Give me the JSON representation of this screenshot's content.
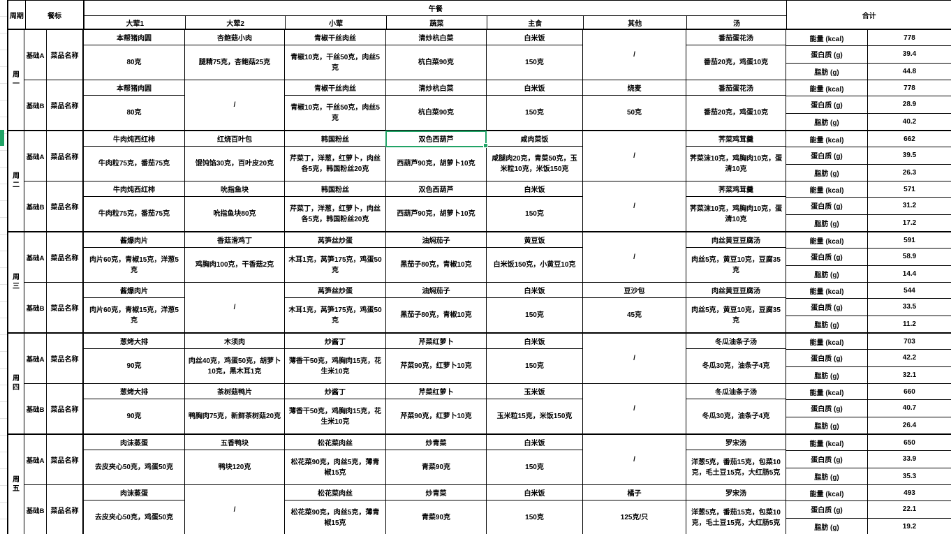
{
  "colors": {
    "selection": "#21a366",
    "grid": "#000000",
    "text": "#000000",
    "background": "#ffffff"
  },
  "header": {
    "period": "周期",
    "meal_standard": "餐标",
    "meal": "午餐",
    "total": "合计",
    "columns": [
      "大荤1",
      "大荤2",
      "小荤",
      "蔬菜",
      "主食",
      "其他",
      "汤"
    ]
  },
  "nutrition_labels": [
    "能量 (kcal)",
    "蛋白质 (g)",
    "脂肪 (g)"
  ],
  "row_label": "菜品名称",
  "selection": {
    "day_index": 1,
    "plan_index": 0,
    "col_index": 3,
    "cell_text": "双色西葫芦"
  },
  "days": [
    {
      "day": "周一",
      "plans": [
        {
          "name": "基础A",
          "dishes": [
            {
              "n": "本帮猪肉圆",
              "q": "80克"
            },
            {
              "n": "杏鲍菇小肉",
              "q": "腿精75克，杏鲍菇25克"
            },
            {
              "n": "青椒干丝肉丝",
              "q": "青椒10克，干丝50克，肉丝5克"
            },
            {
              "n": "清炒杭白菜",
              "q": "杭白菜90克"
            },
            {
              "n": "白米饭",
              "q": "150克"
            },
            {
              "n": "/",
              "m": true
            },
            {
              "n": "番茄蛋花汤",
              "q": "番茄20克，鸡蛋10克"
            }
          ],
          "totals": [
            "778",
            "39.4",
            "44.8"
          ]
        },
        {
          "name": "基础B",
          "dishes": [
            {
              "n": "本帮猪肉圆",
              "q": "80克"
            },
            {
              "n": "/",
              "m": true
            },
            {
              "n": "青椒干丝肉丝",
              "q": "青椒10克，干丝50克，肉丝5克"
            },
            {
              "n": "清炒杭白菜",
              "q": "杭白菜90克"
            },
            {
              "n": "白米饭",
              "q": "150克"
            },
            {
              "n": "烧麦",
              "q": "50克"
            },
            {
              "n": "番茄蛋花汤",
              "q": "番茄20克，鸡蛋10克"
            }
          ],
          "totals": [
            "778",
            "28.9",
            "40.2"
          ]
        }
      ]
    },
    {
      "day": "周二",
      "plans": [
        {
          "name": "基础A",
          "dishes": [
            {
              "n": "牛肉炖西红柿",
              "q": "牛肉粒75克，番茄75克"
            },
            {
              "n": "红烧百叶包",
              "q": "馄饨馅30克，百叶皮20克"
            },
            {
              "n": "韩国粉丝",
              "q": "芹菜丁，洋葱，红萝卜，肉丝各5克，韩国粉丝20克"
            },
            {
              "n": "双色西葫芦",
              "q": "西葫芦90克，胡萝卜10克"
            },
            {
              "n": "咸肉菜饭",
              "q": "咸腿肉20克，青菜50克，玉米粒10克，米饭150克"
            },
            {
              "n": "/",
              "m": true
            },
            {
              "n": "荠菜鸡茸羹",
              "q": "荠菜沫10克，鸡胸肉10克，蛋清10克"
            }
          ],
          "totals": [
            "662",
            "39.5",
            "26.3"
          ]
        },
        {
          "name": "基础B",
          "dishes": [
            {
              "n": "牛肉炖西红柿",
              "q": "牛肉粒75克，番茄75克"
            },
            {
              "n": "吮指鱼块",
              "q": "吮指鱼块80克"
            },
            {
              "n": "韩国粉丝",
              "q": "芹菜丁，洋葱，红萝卜，肉丝各5克，韩国粉丝20克"
            },
            {
              "n": "双色西葫芦",
              "q": "西葫芦90克，胡萝卜10克"
            },
            {
              "n": "白米饭",
              "q": "150克"
            },
            {
              "n": "/",
              "m": true
            },
            {
              "n": "荠菜鸡茸羹",
              "q": "荠菜沫10克，鸡胸肉10克，蛋清10克"
            }
          ],
          "totals": [
            "571",
            "31.2",
            "17.2"
          ]
        }
      ]
    },
    {
      "day": "周三",
      "plans": [
        {
          "name": "基础A",
          "dishes": [
            {
              "n": "酱爆肉片",
              "q": "肉片60克，青椒15克，洋葱5克"
            },
            {
              "n": "香菇滑鸡丁",
              "q": "鸡胸肉100克，干香菇2克"
            },
            {
              "n": "莴笋丝炒蛋",
              "q": "木耳1克，莴笋175克，鸡蛋50克"
            },
            {
              "n": "油焖茄子",
              "q": "黑茄子80克，青椒10克"
            },
            {
              "n": "黄豆饭",
              "q": "白米饭150克，小黄豆10克"
            },
            {
              "n": "/",
              "m": true
            },
            {
              "n": "肉丝黄豆豆腐汤",
              "q": "肉丝5克，黄豆10克，豆腐35克"
            }
          ],
          "totals": [
            "591",
            "58.9",
            "14.4"
          ]
        },
        {
          "name": "基础B",
          "dishes": [
            {
              "n": "酱爆肉片",
              "q": "肉片60克，青椒15克，洋葱5克"
            },
            {
              "n": "/",
              "m": true
            },
            {
              "n": "莴笋丝炒蛋",
              "q": "木耳1克，莴笋175克，鸡蛋50克"
            },
            {
              "n": "油焖茄子",
              "q": "黑茄子80克，青椒10克"
            },
            {
              "n": "白米饭",
              "q": "150克"
            },
            {
              "n": "豆沙包",
              "q": "45克"
            },
            {
              "n": "肉丝黄豆豆腐汤",
              "q": "肉丝5克，黄豆10克，豆腐35克"
            }
          ],
          "totals": [
            "544",
            "33.5",
            "11.2"
          ]
        }
      ]
    },
    {
      "day": "周四",
      "plans": [
        {
          "name": "基础A",
          "dishes": [
            {
              "n": "葱烤大排",
              "q": "90克"
            },
            {
              "n": "木须肉",
              "q": "肉丝40克，鸡蛋50克，胡萝卜10克，黑木耳1克"
            },
            {
              "n": "炒酱丁",
              "q": "薄香干50克，鸡胸肉15克，花生米10克"
            },
            {
              "n": "芹菜红萝卜",
              "q": "芹菜90克，红萝卜10克"
            },
            {
              "n": "白米饭",
              "q": "150克"
            },
            {
              "n": "/",
              "m": true
            },
            {
              "n": "冬瓜油条子汤",
              "q": "冬瓜30克，油条子4克"
            }
          ],
          "totals": [
            "703",
            "42.2",
            "32.1"
          ]
        },
        {
          "name": "基础B",
          "dishes": [
            {
              "n": "葱烤大排",
              "q": "90克"
            },
            {
              "n": "茶树菇鸭片",
              "q": "鸭胸肉75克，新鲜茶树菇20克"
            },
            {
              "n": "炒酱丁",
              "q": "薄香干50克，鸡胸肉15克，花生米10克"
            },
            {
              "n": "芹菜红萝卜",
              "q": "芹菜90克，红萝卜10克"
            },
            {
              "n": "玉米饭",
              "q": "玉米粒15克，米饭150克"
            },
            {
              "n": "/",
              "m": true
            },
            {
              "n": "冬瓜油条子汤",
              "q": "冬瓜30克，油条子4克"
            }
          ],
          "totals": [
            "660",
            "40.7",
            "26.4"
          ]
        }
      ]
    },
    {
      "day": "周五",
      "plans": [
        {
          "name": "基础A",
          "dishes": [
            {
              "n": "肉沫蒸蛋",
              "q": "去皮夹心50克，鸡蛋50克"
            },
            {
              "n": "五香鸭块",
              "q": "鸭块120克"
            },
            {
              "n": "松花菜肉丝",
              "q": "松花菜90克，肉丝5克，薄青椒15克"
            },
            {
              "n": "炒青菜",
              "q": "青菜90克"
            },
            {
              "n": "白米饭",
              "q": "150克"
            },
            {
              "n": "/",
              "m": true
            },
            {
              "n": "罗宋汤",
              "q": "洋葱5克，番茄15克，包菜10克，毛土豆15克，大红肠5克"
            }
          ],
          "totals": [
            "650",
            "33.9",
            "35.3"
          ]
        },
        {
          "name": "基础B",
          "dishes": [
            {
              "n": "肉沫蒸蛋",
              "q": "去皮夹心50克，鸡蛋50克"
            },
            {
              "n": "/",
              "m": true
            },
            {
              "n": "松花菜肉丝",
              "q": "松花菜90克，肉丝5克，薄青椒15克"
            },
            {
              "n": "炒青菜",
              "q": "青菜90克"
            },
            {
              "n": "白米饭",
              "q": "150克"
            },
            {
              "n": "橘子",
              "q": "125克/只"
            },
            {
              "n": "罗宋汤",
              "q": "洋葱5克，番茄15克，包菜10克，毛土豆15克，大红肠5克"
            }
          ],
          "totals": [
            "493",
            "22.1",
            "19.2"
          ]
        }
      ]
    }
  ]
}
